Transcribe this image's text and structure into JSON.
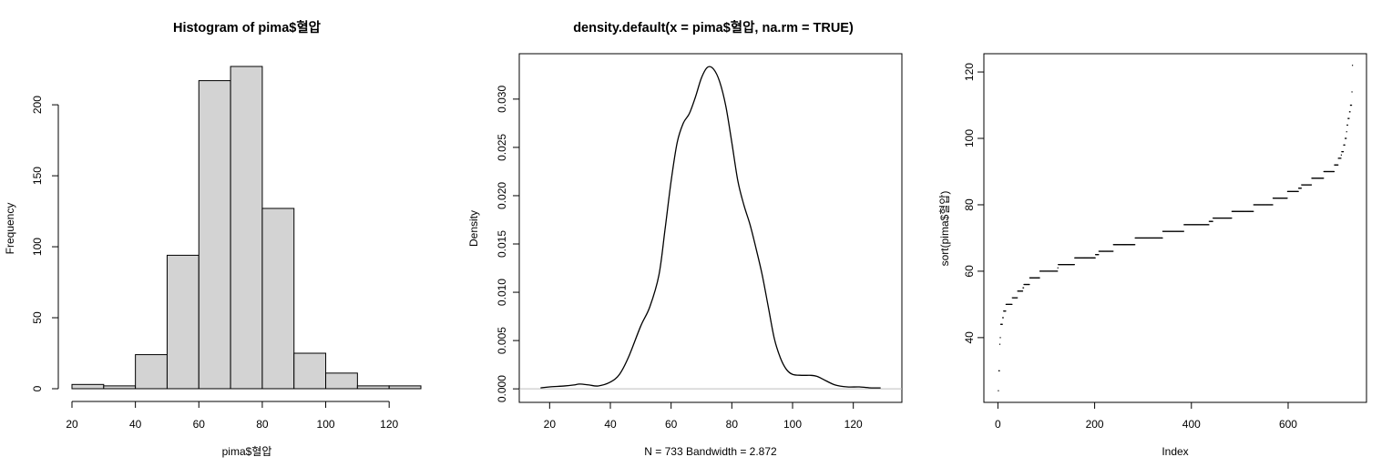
{
  "colors": {
    "bar_fill": "#d3d3d3",
    "stroke": "#000000",
    "zero_line": "#bebebe",
    "background": "#ffffff"
  },
  "chart_data": [
    {
      "type": "bar",
      "title": "Histogram of pima$혈압",
      "xlabel": "pima$혈압",
      "ylabel": "Frequency",
      "bin_edges": [
        20,
        30,
        40,
        50,
        60,
        70,
        80,
        90,
        100,
        110,
        120,
        130
      ],
      "values": [
        3,
        2,
        24,
        94,
        217,
        227,
        127,
        25,
        11,
        2,
        2
      ],
      "xlim": [
        20,
        130
      ],
      "ylim": [
        0,
        227
      ],
      "xticks": [
        "20",
        "40",
        "60",
        "80",
        "100",
        "120"
      ],
      "yticks": [
        "0",
        "50",
        "100",
        "150",
        "200"
      ],
      "grid": false,
      "legend": "none"
    },
    {
      "type": "line",
      "title": "density.default(x = pima$혈압, na.rm = TRUE)",
      "xlabel": "N = 733   Bandwidth = 2.872",
      "ylabel": "Density",
      "x": [
        17,
        20,
        25,
        28,
        30,
        33,
        36,
        40,
        43,
        46,
        50,
        53,
        56,
        58,
        60,
        62,
        64,
        66,
        68,
        70,
        72,
        74,
        76,
        78,
        80,
        82,
        84,
        86,
        88,
        90,
        92,
        94,
        96,
        98,
        100,
        103,
        106,
        108,
        110,
        114,
        118,
        122,
        126,
        129
      ],
      "y": [
        0.0001,
        0.0002,
        0.0003,
        0.0004,
        0.0005,
        0.0004,
        0.0003,
        0.0007,
        0.0015,
        0.0033,
        0.0065,
        0.0085,
        0.0118,
        0.0165,
        0.0215,
        0.0255,
        0.0275,
        0.0285,
        0.0302,
        0.0322,
        0.0333,
        0.0331,
        0.0318,
        0.0293,
        0.0255,
        0.0215,
        0.019,
        0.017,
        0.0145,
        0.0118,
        0.0085,
        0.0052,
        0.0032,
        0.002,
        0.0015,
        0.0014,
        0.0014,
        0.0013,
        0.001,
        0.0004,
        0.0002,
        0.0002,
        0.0001,
        0.0001
      ],
      "xlim": [
        10,
        136
      ],
      "ylim": [
        -0.0014,
        0.0347
      ],
      "xticks": [
        "20",
        "40",
        "60",
        "80",
        "100",
        "120"
      ],
      "yticks": [
        "0.000",
        "0.005",
        "0.010",
        "0.015",
        "0.020",
        "0.025",
        "0.030"
      ],
      "grid": false,
      "legend": "none"
    },
    {
      "type": "scatter",
      "title": "",
      "xlabel": "Index",
      "ylabel": "sort(pima$혈압)",
      "series": [
        {
          "values_by_level": [
            {
              "value": 24,
              "count": 1
            },
            {
              "value": 30,
              "count": 2
            },
            {
              "value": 38,
              "count": 1
            },
            {
              "value": 40,
              "count": 1
            },
            {
              "value": 44,
              "count": 4
            },
            {
              "value": 46,
              "count": 2
            },
            {
              "value": 48,
              "count": 5
            },
            {
              "value": 50,
              "count": 13
            },
            {
              "value": 52,
              "count": 11
            },
            {
              "value": 54,
              "count": 11
            },
            {
              "value": 55,
              "count": 2
            },
            {
              "value": 56,
              "count": 12
            },
            {
              "value": 58,
              "count": 21
            },
            {
              "value": 60,
              "count": 37
            },
            {
              "value": 61,
              "count": 1
            },
            {
              "value": 62,
              "count": 34
            },
            {
              "value": 64,
              "count": 43
            },
            {
              "value": 65,
              "count": 7
            },
            {
              "value": 66,
              "count": 30
            },
            {
              "value": 68,
              "count": 45
            },
            {
              "value": 70,
              "count": 57
            },
            {
              "value": 72,
              "count": 44
            },
            {
              "value": 74,
              "count": 52
            },
            {
              "value": 75,
              "count": 8
            },
            {
              "value": 76,
              "count": 39
            },
            {
              "value": 78,
              "count": 45
            },
            {
              "value": 80,
              "count": 40
            },
            {
              "value": 82,
              "count": 30
            },
            {
              "value": 84,
              "count": 23
            },
            {
              "value": 85,
              "count": 6
            },
            {
              "value": 86,
              "count": 21
            },
            {
              "value": 88,
              "count": 25
            },
            {
              "value": 90,
              "count": 22
            },
            {
              "value": 92,
              "count": 8
            },
            {
              "value": 94,
              "count": 6
            },
            {
              "value": 95,
              "count": 1
            },
            {
              "value": 96,
              "count": 4
            },
            {
              "value": 98,
              "count": 3
            },
            {
              "value": 100,
              "count": 3
            },
            {
              "value": 102,
              "count": 1
            },
            {
              "value": 104,
              "count": 2
            },
            {
              "value": 106,
              "count": 3
            },
            {
              "value": 108,
              "count": 2
            },
            {
              "value": 110,
              "count": 3
            },
            {
              "value": 114,
              "count": 1
            },
            {
              "value": 122,
              "count": 1
            }
          ]
        }
      ],
      "xlim": [
        -29,
        762
      ],
      "ylim": [
        20.5,
        125.5
      ],
      "xticks": [
        "0",
        "200",
        "400",
        "600"
      ],
      "yticks": [
        "40",
        "60",
        "80",
        "100",
        "120"
      ],
      "grid": false,
      "legend": "none"
    }
  ]
}
